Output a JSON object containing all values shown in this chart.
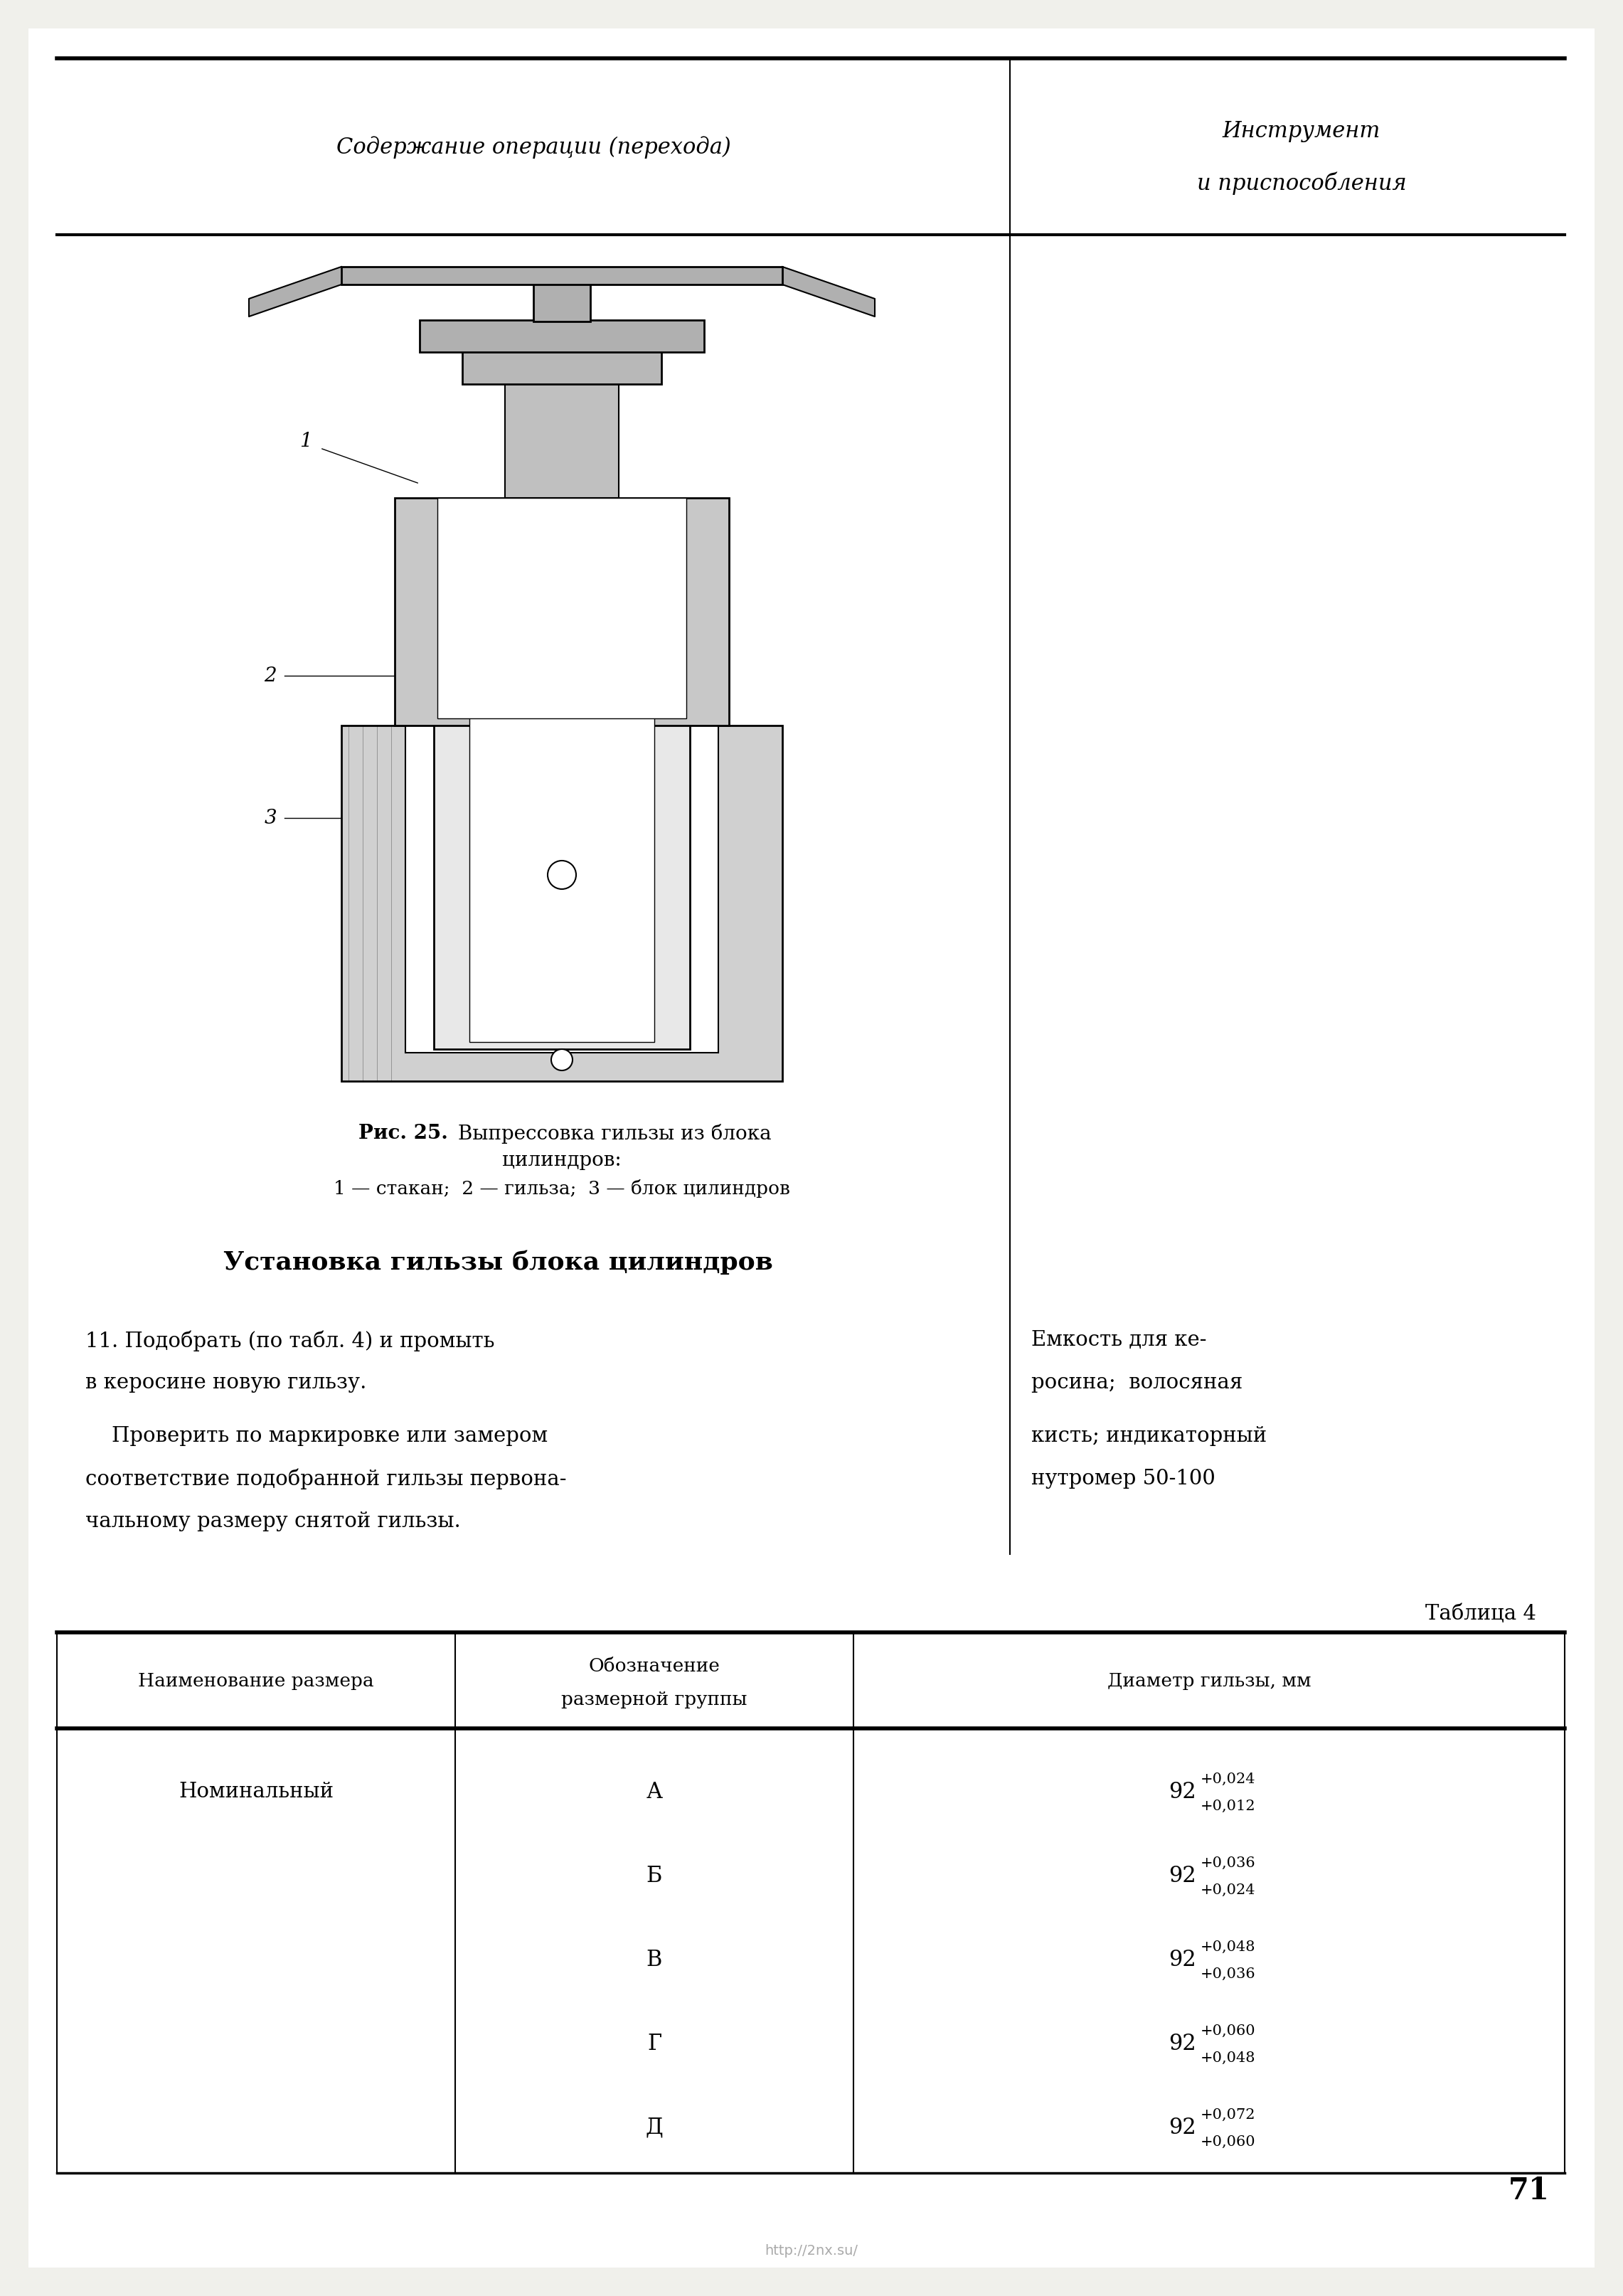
{
  "bg_color": "#f0f0eb",
  "header_col1": "Содержание операции (перехода)",
  "section_title": "Установка гильзы блока цилиндров",
  "fig_caption_bold": "Рис. 25.",
  "fig_caption_text": " Выпрессовка гильзы из блока",
  "fig_caption_text2": "цилиндров:",
  "fig_sub_caption": "1 — стакан;  2 — гильза;  3 — блок цилиндров",
  "table_title": "Таблица 4",
  "table_headers": [
    "Наименование размера",
    "Обозначение\nразмерной группы",
    "Диаметр гильзы, мм"
  ],
  "table_col1": [
    "Номинальный",
    "",
    "",
    "",
    ""
  ],
  "table_col2": [
    "А",
    "Б",
    "В",
    "Г",
    "Д"
  ],
  "table_col3_raw": [
    [
      "92",
      "+0,024",
      "+0,012"
    ],
    [
      "92",
      "+0,036",
      "+0,024"
    ],
    [
      "92",
      "+0,048",
      "+0,036"
    ],
    [
      "92",
      "+0,060",
      "+0,048"
    ],
    [
      "92",
      "+0,072",
      "+0,060"
    ]
  ],
  "para_lines_left": [
    [
      "11. Подобрать (по табл. 4) и промыть",
      1870
    ],
    [
      "в керосине новую гильзу.",
      1930
    ],
    [
      "    Проверить по маркировке или замером",
      2005
    ],
    [
      "соответствие подобранной гильзы первона-",
      2065
    ],
    [
      "чальному размеру снятой гильзы.",
      2125
    ]
  ],
  "para_lines_right": [
    [
      "Емкость для ке-",
      1870
    ],
    [
      "росина;  волосяная",
      1930
    ],
    [
      "кисть; индикаторный",
      2005
    ],
    [
      "нутромер 50-100",
      2065
    ]
  ],
  "page_number": "71",
  "watermark": "http://2nx.su/"
}
